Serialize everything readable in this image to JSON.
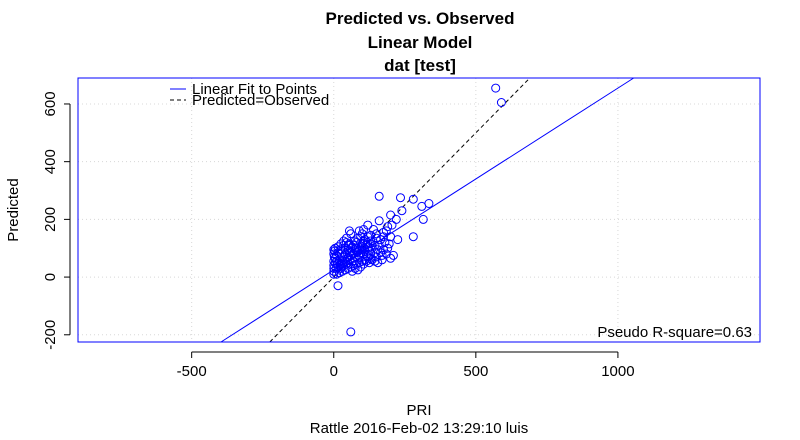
{
  "chart_data": {
    "type": "scatter",
    "title": [
      "Predicted vs. Observed",
      "Linear Model",
      "dat [test]"
    ],
    "xlabel": "PRI",
    "ylabel": "Predicted",
    "subtitle": "Rattle 2016-Feb-02 13:29:10 luis",
    "xlim": [
      -900,
      1500
    ],
    "ylim": [
      -225,
      690
    ],
    "xticks": [
      -500,
      0,
      500,
      1000
    ],
    "yticks": [
      -200,
      0,
      200,
      400,
      600
    ],
    "grid": true,
    "grid_style": "dotted",
    "legend": {
      "position": "top-left",
      "entries": [
        {
          "label": "Linear Fit to Points",
          "style": "solid",
          "color": "#0000ff"
        },
        {
          "label": "Predicted=Observed",
          "style": "dashed",
          "color": "#000000"
        }
      ]
    },
    "annotation": "Pseudo R-square=0.63",
    "fit_line": {
      "slope": 0.63,
      "intercept": 25,
      "color": "#0000ff"
    },
    "identity_line": {
      "slope": 1,
      "intercept": 0,
      "color": "#000000"
    },
    "point_color": "#0000ff",
    "series": [
      {
        "values": [
          [
            570,
            655
          ],
          [
            590,
            605
          ],
          [
            60,
            -190
          ],
          [
            15,
            -30
          ],
          [
            160,
            280
          ],
          [
            235,
            275
          ],
          [
            280,
            270
          ],
          [
            240,
            230
          ],
          [
            335,
            255
          ],
          [
            310,
            245
          ],
          [
            315,
            200
          ],
          [
            200,
            215
          ],
          [
            220,
            200
          ],
          [
            160,
            195
          ],
          [
            120,
            180
          ],
          [
            140,
            165
          ],
          [
            185,
            160
          ],
          [
            200,
            140
          ],
          [
            280,
            140
          ],
          [
            225,
            130
          ],
          [
            90,
            160
          ],
          [
            100,
            150
          ],
          [
            175,
            140
          ],
          [
            150,
            135
          ],
          [
            195,
            115
          ],
          [
            210,
            75
          ],
          [
            200,
            65
          ],
          [
            190,
            100
          ],
          [
            180,
            120
          ],
          [
            130,
            125
          ],
          [
            110,
            130
          ],
          [
            95,
            140
          ],
          [
            80,
            120
          ],
          [
            70,
            110
          ],
          [
            60,
            100
          ],
          [
            50,
            95
          ],
          [
            40,
            80
          ],
          [
            30,
            70
          ],
          [
            20,
            60
          ],
          [
            10,
            55
          ],
          [
            5,
            50
          ],
          [
            0,
            40
          ],
          [
            0,
            20
          ],
          [
            0,
            10
          ],
          [
            2,
            70
          ],
          [
            3,
            90
          ],
          [
            5,
            100
          ],
          [
            15,
            85
          ],
          [
            25,
            95
          ],
          [
            35,
            110
          ],
          [
            45,
            120
          ],
          [
            55,
            115
          ],
          [
            65,
            105
          ],
          [
            75,
            95
          ],
          [
            85,
            90
          ],
          [
            95,
            85
          ],
          [
            105,
            80
          ],
          [
            115,
            75
          ],
          [
            125,
            90
          ],
          [
            135,
            100
          ],
          [
            145,
            110
          ],
          [
            155,
            95
          ],
          [
            165,
            85
          ],
          [
            170,
            75
          ],
          [
            150,
            70
          ],
          [
            130,
            65
          ],
          [
            110,
            60
          ],
          [
            100,
            55
          ],
          [
            90,
            50
          ],
          [
            80,
            45
          ],
          [
            70,
            40
          ],
          [
            60,
            35
          ],
          [
            50,
            30
          ],
          [
            40,
            25
          ],
          [
            30,
            20
          ],
          [
            20,
            15
          ],
          [
            10,
            10
          ],
          [
            8,
            30
          ],
          [
            12,
            45
          ],
          [
            18,
            50
          ],
          [
            22,
            40
          ],
          [
            28,
            35
          ],
          [
            32,
            50
          ],
          [
            38,
            60
          ],
          [
            42,
            55
          ],
          [
            48,
            65
          ],
          [
            52,
            70
          ],
          [
            58,
            60
          ],
          [
            62,
            75
          ],
          [
            68,
            80
          ],
          [
            72,
            65
          ],
          [
            78,
            70
          ],
          [
            82,
            85
          ],
          [
            88,
            75
          ],
          [
            92,
            95
          ],
          [
            98,
            105
          ],
          [
            102,
            115
          ],
          [
            108,
            100
          ],
          [
            112,
            110
          ],
          [
            118,
            120
          ],
          [
            122,
            105
          ],
          [
            128,
            115
          ],
          [
            60,
            150
          ],
          [
            55,
            160
          ],
          [
            45,
            135
          ],
          [
            35,
            125
          ],
          [
            25,
            115
          ],
          [
            15,
            105
          ],
          [
            65,
            20
          ],
          [
            75,
            30
          ],
          [
            85,
            25
          ],
          [
            95,
            35
          ],
          [
            105,
            45
          ],
          [
            115,
            55
          ],
          [
            125,
            50
          ],
          [
            135,
            60
          ],
          [
            145,
            55
          ],
          [
            155,
            50
          ],
          [
            170,
            60
          ],
          [
            185,
            80
          ],
          [
            145,
            85
          ],
          [
            160,
            110
          ],
          [
            175,
            95
          ],
          [
            140,
            120
          ],
          [
            120,
            140
          ],
          [
            105,
            165
          ],
          [
            85,
            135
          ],
          [
            75,
            125
          ],
          [
            50,
            110
          ],
          [
            40,
            100
          ],
          [
            20,
            80
          ],
          [
            10,
            75
          ],
          [
            5,
            65
          ],
          [
            0,
            55
          ],
          [
            0,
            80
          ],
          [
            0,
            95
          ],
          [
            0,
            30
          ],
          [
            90,
            70
          ],
          [
            70,
            55
          ],
          [
            50,
            50
          ],
          [
            30,
            45
          ],
          [
            100,
            95
          ],
          [
            110,
            90
          ],
          [
            60,
            88
          ],
          [
            80,
            102
          ],
          [
            95,
            118
          ],
          [
            105,
            125
          ],
          [
            130,
            145
          ],
          [
            150,
            150
          ],
          [
            165,
            130
          ],
          [
            175,
            155
          ],
          [
            190,
            175
          ],
          [
            205,
            180
          ],
          [
            45,
            45
          ],
          [
            35,
            40
          ],
          [
            25,
            30
          ],
          [
            55,
            85
          ],
          [
            65,
            90
          ],
          [
            15,
            35
          ],
          [
            120,
            70
          ],
          [
            130,
            80
          ]
        ]
      }
    ]
  }
}
